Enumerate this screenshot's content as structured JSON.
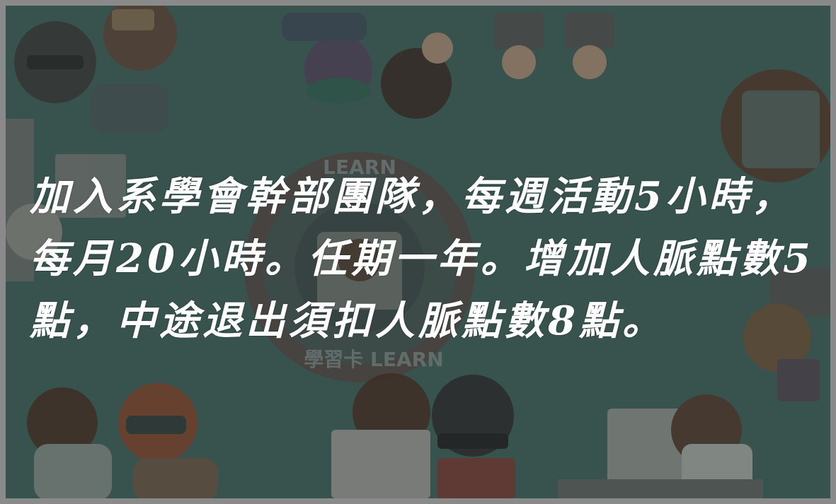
{
  "card": {
    "text": "加入系學會幹部團隊，每週活動5小時，每月20小時。任期一年。增加人脈點數5點，中途退出須扣人脈點數8點。"
  },
  "logo": {
    "text_top": "LEARN",
    "text_bottom": "學習卡 LEARN"
  },
  "colors": {
    "background": "#3f6a63",
    "text": "#ffffff",
    "frame": "#8a8a8a"
  }
}
